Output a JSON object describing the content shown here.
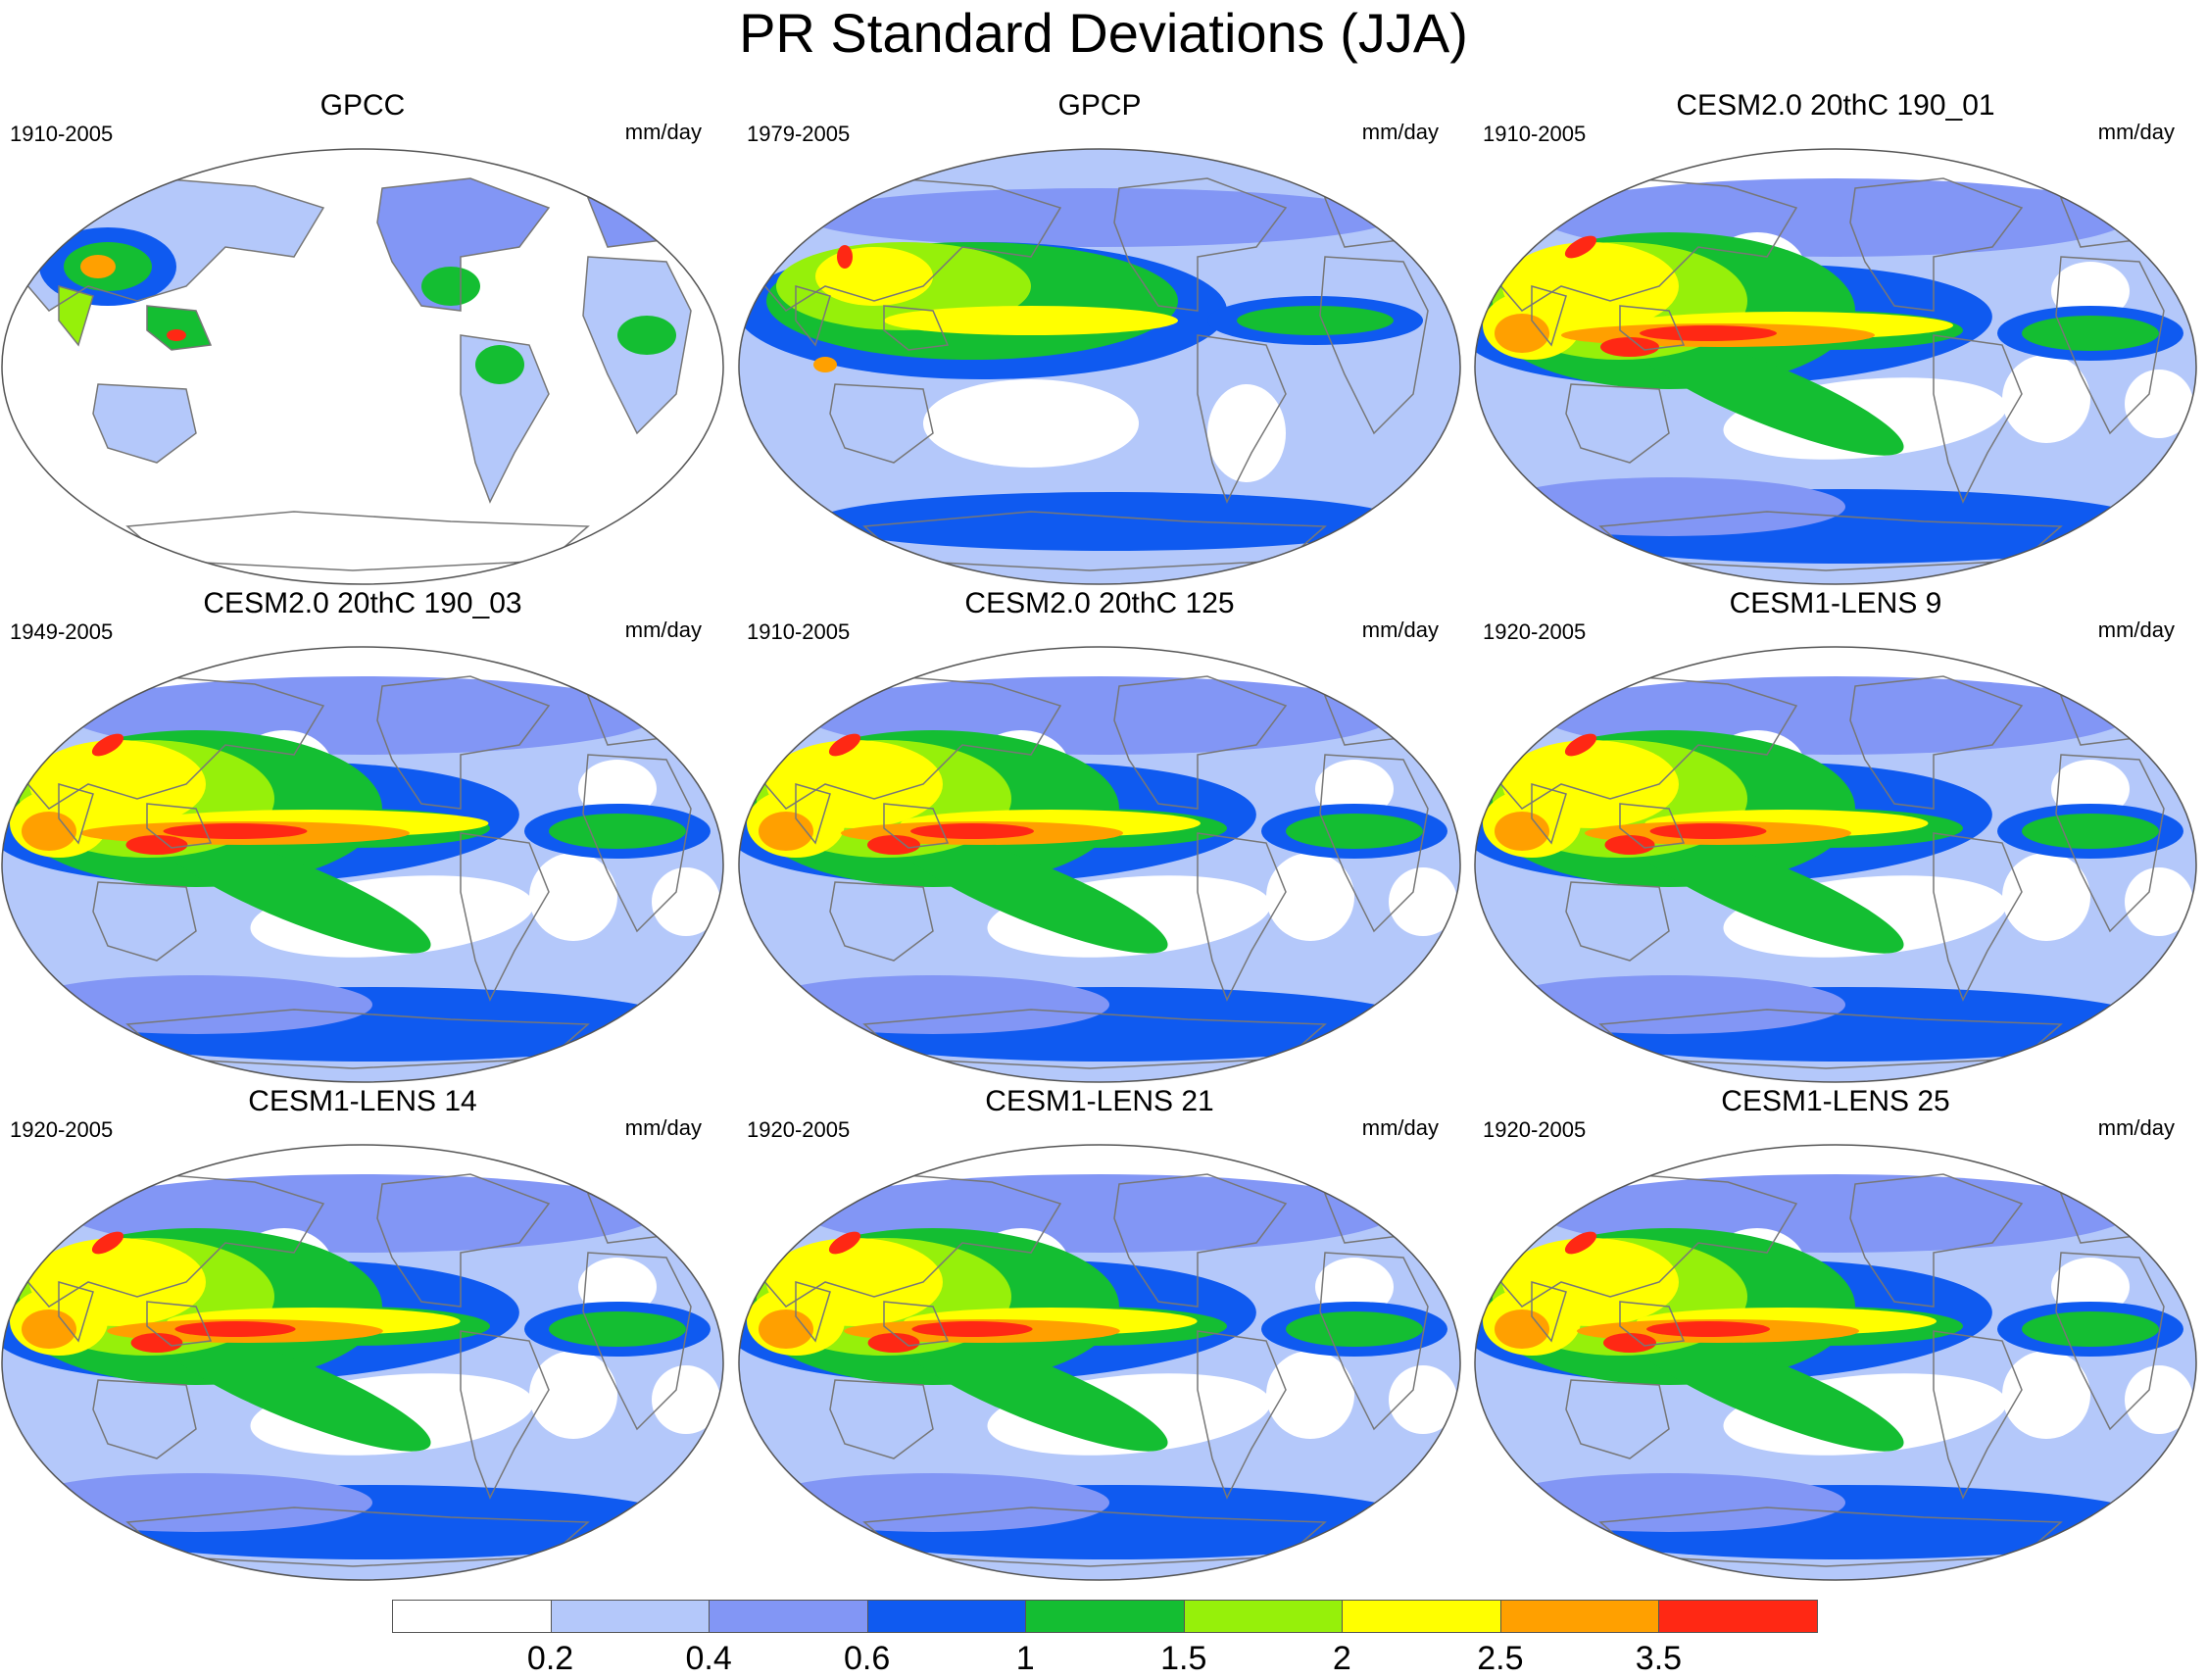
{
  "figure": {
    "title": "PR Standard Deviations (JJA)"
  },
  "panels": [
    {
      "title": "GPCC",
      "period": "1910-2005",
      "units": "mm/day",
      "kind": "gpcc"
    },
    {
      "title": "GPCP",
      "period": "1979-2005",
      "units": "mm/day",
      "kind": "gpcp"
    },
    {
      "title": "CESM2.0 20thC 190_01",
      "period": "1910-2005",
      "units": "mm/day",
      "kind": "model",
      "strength": 1.0
    },
    {
      "title": "CESM2.0 20thC 190_03",
      "period": "1949-2005",
      "units": "mm/day",
      "kind": "model",
      "strength": 1.05
    },
    {
      "title": "CESM2.0 20thC 125",
      "period": "1910-2005",
      "units": "mm/day",
      "kind": "model",
      "strength": 0.9
    },
    {
      "title": "CESM1-LENS 9",
      "period": "1920-2005",
      "units": "mm/day",
      "kind": "model",
      "strength": 0.85
    },
    {
      "title": "CESM1-LENS 14",
      "period": "1920-2005",
      "units": "mm/day",
      "kind": "model",
      "strength": 0.88
    },
    {
      "title": "CESM1-LENS 21",
      "period": "1920-2005",
      "units": "mm/day",
      "kind": "model",
      "strength": 0.88
    },
    {
      "title": "CESM1-LENS 25",
      "period": "1920-2005",
      "units": "mm/day",
      "kind": "model",
      "strength": 0.9
    }
  ],
  "colorbar": {
    "labels": [
      "0.2",
      "0.4",
      "0.6",
      "1",
      "1.5",
      "2",
      "2.5",
      "3.5"
    ],
    "colors": [
      "#ffffff",
      "#b4c8fa",
      "#8296f5",
      "#0f5af0",
      "#14be32",
      "#96f00a",
      "#ffff00",
      "#ffa000",
      "#ff2814"
    ]
  }
}
